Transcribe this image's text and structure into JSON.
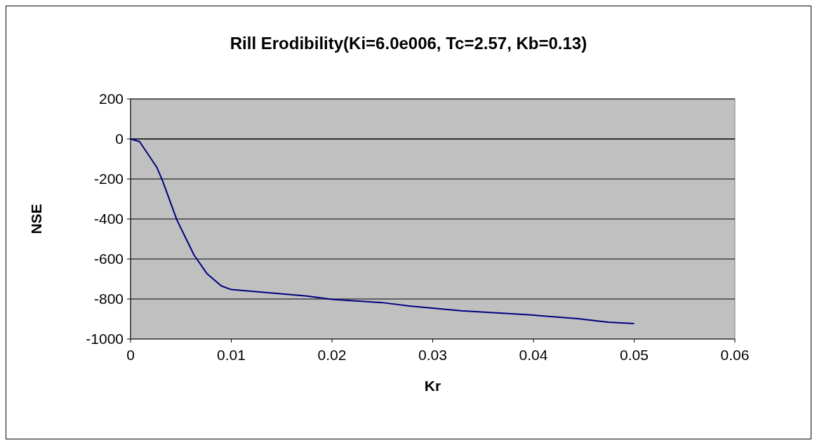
{
  "chart_data": {
    "type": "line",
    "title": "Rill Erodibility(Ki=6.0e006, Tc=2.57, Kb=0.13)",
    "xlabel": "Kr",
    "ylabel": "NSE",
    "x": [
      0,
      0.0009,
      0.0012,
      0.0026,
      0.0029,
      0.0032,
      0.0046,
      0.0063,
      0.0076,
      0.009,
      0.01,
      0.0175,
      0.02,
      0.025,
      0.0277,
      0.0328,
      0.0393,
      0.0444,
      0.0474,
      0.05
    ],
    "series": [
      {
        "color": "#000080",
        "values": [
          0,
          -13,
          -36,
          -141,
          -176,
          -212,
          -405,
          -580,
          -674,
          -734,
          -753,
          -785,
          -802,
          -818,
          -835,
          -859,
          -878,
          -898,
          -916,
          -923
        ]
      }
    ],
    "xlim": [
      0,
      0.06
    ],
    "xticks": [
      0,
      0.01,
      0.02,
      0.03,
      0.04,
      0.05,
      0.06
    ],
    "ylim": [
      -1000,
      200
    ],
    "yticks": [
      -1000,
      -800,
      -600,
      -400,
      -200,
      0,
      200
    ],
    "grid": "y",
    "marker": "none",
    "line_style": "solid"
  }
}
